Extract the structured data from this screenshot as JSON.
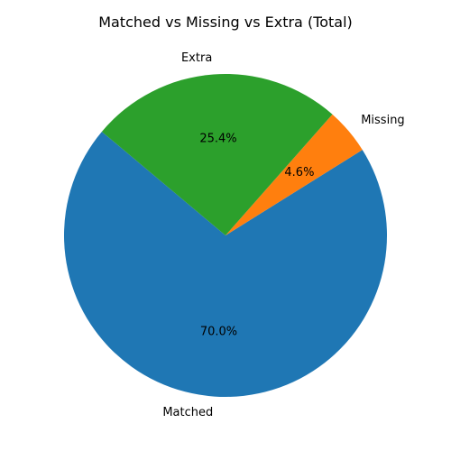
{
  "chart_data": {
    "type": "pie",
    "title": "Matched vs Missing vs Extra (Total)",
    "start_angle_deg": 140,
    "direction": "counterclockwise",
    "slices": [
      {
        "label": "Matched",
        "value": 70.0,
        "pct_text": "70.0%",
        "color": "#1f77b4"
      },
      {
        "label": "Missing",
        "value": 4.6,
        "pct_text": "4.6%",
        "color": "#ff7f0e"
      },
      {
        "label": "Extra",
        "value": 25.4,
        "pct_text": "25.4%",
        "color": "#2ca02c"
      }
    ]
  }
}
